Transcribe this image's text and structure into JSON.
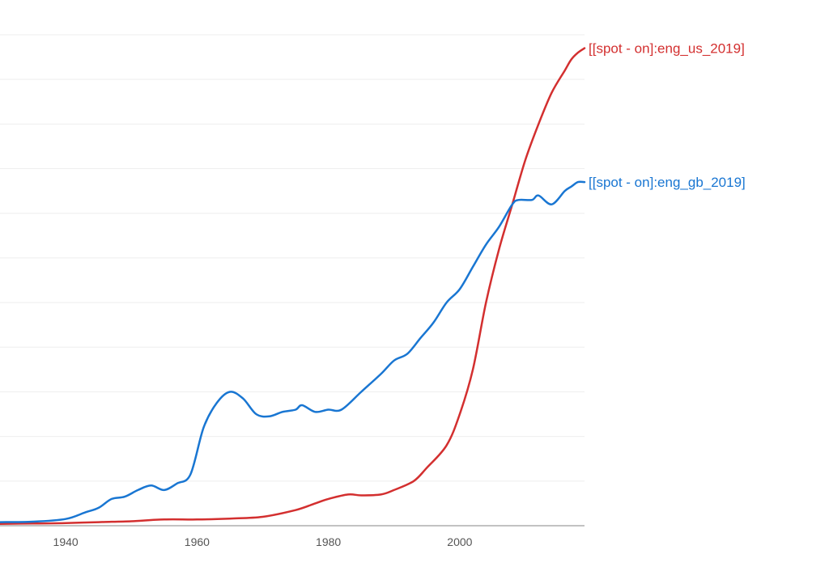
{
  "chart_data": {
    "type": "line",
    "xlim": [
      1930,
      2019
    ],
    "ylim": [
      0,
      110
    ],
    "grid": true,
    "gridlines_y": [
      10,
      20,
      30,
      40,
      50,
      60,
      70,
      80,
      90,
      100,
      110
    ],
    "xticks": [
      1940,
      1960,
      1980,
      2000
    ],
    "xtick_labels": [
      "1940",
      "1960",
      "1980",
      "2000"
    ],
    "series": [
      {
        "name": "[[spot - on]:eng_us_2019]",
        "color": "#d32f2f",
        "x": [
          1930,
          1935,
          1940,
          1945,
          1950,
          1955,
          1960,
          1965,
          1970,
          1975,
          1978,
          1980,
          1983,
          1985,
          1988,
          1990,
          1993,
          1995,
          1998,
          2000,
          2002,
          2004,
          2006,
          2008,
          2010,
          2012,
          2014,
          2016,
          2017,
          2018,
          2019
        ],
        "y": [
          0.4,
          0.5,
          0.6,
          0.8,
          1.0,
          1.4,
          1.4,
          1.6,
          2.0,
          3.5,
          5.0,
          6.0,
          7.0,
          6.8,
          7.0,
          8.0,
          10.0,
          13.0,
          18.0,
          25.0,
          35.0,
          50.0,
          62.0,
          72.0,
          82.0,
          90.0,
          97.0,
          102.0,
          104.5,
          106.0,
          107.0
        ]
      },
      {
        "name": "[[spot - on]:eng_gb_2019]",
        "color": "#1976d2",
        "x": [
          1930,
          1935,
          1940,
          1943,
          1945,
          1947,
          1949,
          1951,
          1953,
          1955,
          1957,
          1959,
          1961,
          1963,
          1965,
          1967,
          1969,
          1971,
          1973,
          1975,
          1976,
          1978,
          1980,
          1982,
          1985,
          1988,
          1990,
          1992,
          1994,
          1996,
          1998,
          2000,
          2002,
          2004,
          2006,
          2008,
          2009,
          2011,
          2012,
          2014,
          2016,
          2017,
          2018,
          2019
        ],
        "y": [
          0.8,
          0.9,
          1.5,
          3.0,
          4.0,
          6.0,
          6.5,
          8.0,
          9.0,
          8.0,
          9.5,
          11.5,
          22.0,
          27.5,
          30.0,
          28.5,
          25.0,
          24.5,
          25.5,
          26.0,
          27.0,
          25.5,
          26.0,
          26.0,
          30.0,
          34.0,
          37.0,
          38.5,
          42.0,
          45.5,
          50.0,
          53.0,
          58.0,
          63.0,
          67.0,
          72.0,
          73.0,
          73.0,
          74.0,
          72.0,
          75.0,
          76.0,
          77.0,
          77.0
        ]
      }
    ]
  }
}
